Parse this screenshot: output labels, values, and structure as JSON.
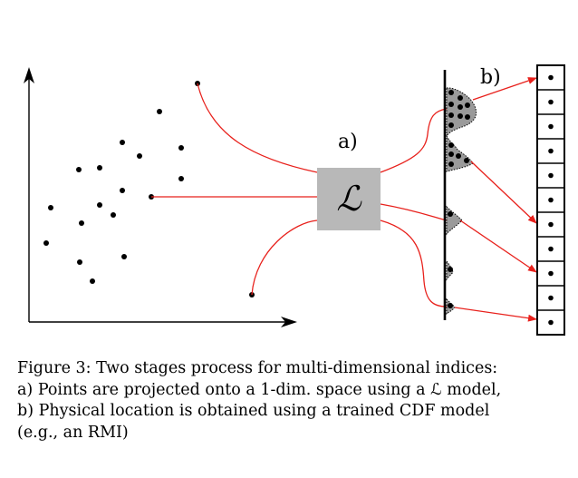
{
  "diagram": {
    "label_a": "a)",
    "label_b": "b)",
    "model_symbol": "ℒ",
    "colors": {
      "mapping_line": "#e8211c",
      "model_box": "#b8b8b8",
      "density_fill": "#9a9a9a",
      "ink": "#000000"
    },
    "icons": [
      "arrow-right-icon",
      "arrow-up-icon"
    ]
  },
  "caption": {
    "line1": "Figure 3: Two stages process for multi-dimensional indices:",
    "line2": "a) Points are projected onto a 1-dim. space using a ℒ model,",
    "line3": "b) Physical location is obtained using a trained CDF model",
    "line4": "(e.g., an RMI)"
  }
}
